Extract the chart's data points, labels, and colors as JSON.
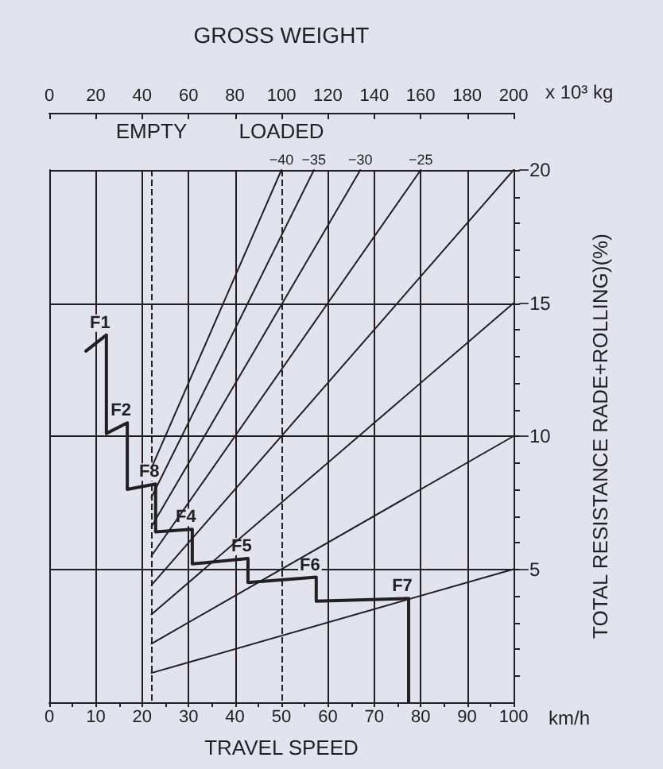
{
  "chart_data": {
    "type": "line",
    "x2label": "GROSS WEIGHT",
    "xlabel": "TRAVEL SPEED",
    "ylabel": "TOTAL RESISTANCE RADE+ROLLING)(%)",
    "xlim": [
      0,
      100
    ],
    "xticks": [
      0,
      {
        "value": 5,
        "label": null
      },
      10,
      {
        "value": 15,
        "label": null
      },
      20,
      {
        "value": 25,
        "label": null
      },
      30,
      {
        "value": 35,
        "label": null
      },
      40,
      {
        "value": 45,
        "label": null
      },
      50,
      {
        "value": 55,
        "label": null
      },
      60,
      {
        "value": 65,
        "label": null
      },
      70,
      {
        "value": 75,
        "label": null
      },
      80,
      {
        "value": 85,
        "label": null
      },
      90,
      {
        "value": 95,
        "label": null
      },
      100
    ],
    "x2lim": [
      0,
      200
    ],
    "x2ticks": [
      0,
      20,
      40,
      60,
      80,
      100,
      120,
      140,
      160,
      180,
      200
    ],
    "ylim": [
      0,
      -20
    ],
    "yticks": [
      {
        "value": -1,
        "label": null
      },
      {
        "value": -2,
        "label": null
      },
      {
        "value": -3,
        "label": null
      },
      {
        "value": -4,
        "label": null
      },
      -5,
      {
        "value": -6,
        "label": null
      },
      {
        "value": -7,
        "label": null
      },
      {
        "value": -8,
        "label": null
      },
      {
        "value": -9,
        "label": null
      },
      -10,
      {
        "value": -11,
        "label": null
      },
      {
        "value": -12,
        "label": null
      },
      {
        "value": -13,
        "label": null
      },
      {
        "value": -14,
        "label": null
      },
      -15,
      {
        "value": -16,
        "label": null
      },
      {
        "value": -17,
        "label": null
      },
      {
        "value": -18,
        "label": null
      },
      {
        "value": -19,
        "label": null
      },
      -20
    ],
    "grid": true,
    "marker": "none",
    "line_style": "solid",
    "series": [
      {
        "color": "#231f20",
        "x": [
          7.9,
          12.3,
          12.3,
          16.8,
          16.8,
          22.9,
          22.9,
          30.8,
          30.8,
          42.8,
          42.8,
          57.5,
          57.5,
          77.4,
          77.4
        ],
        "values": [
          -13.2,
          -13.8,
          -10.1,
          -10.5,
          -8.0,
          -8.2,
          -6.4,
          -6.5,
          -5.2,
          -5.4,
          -4.5,
          -4.7,
          -3.8,
          -3.9,
          0
        ]
      },
      {
        "color": "#231f20",
        "x": [
          22,
          100
        ],
        "values": [
          -1.1,
          -5
        ]
      },
      {
        "color": "#231f20",
        "x": [
          22,
          100
        ],
        "values": [
          -2.2,
          -10
        ]
      },
      {
        "color": "#231f20",
        "x": [
          22,
          100
        ],
        "values": [
          -3.3,
          -15
        ]
      },
      {
        "color": "#231f20",
        "x": [
          22,
          100
        ],
        "values": [
          -4.4,
          -20
        ]
      },
      {
        "name": "−25",
        "color": "#231f20",
        "x": [
          22,
          80
        ],
        "values": [
          -5.5,
          -20
        ]
      },
      {
        "name": "−30",
        "color": "#231f20",
        "x": [
          22,
          67
        ],
        "values": [
          -6.6,
          -20
        ]
      },
      {
        "name": "−35",
        "color": "#231f20",
        "x": [
          22,
          57
        ],
        "values": [
          -7.7,
          -20
        ]
      },
      {
        "name": "−40",
        "color": "#231f20",
        "x": [
          22,
          50
        ],
        "values": [
          -8.8,
          -20
        ]
      }
    ],
    "ref_lines": [
      {
        "axis": "x",
        "value": 22,
        "label": "EMPTY",
        "line_style": "dashed",
        "color": "#231f20"
      },
      {
        "axis": "x",
        "value": 50,
        "label": "LOADED",
        "line_style": "dashed",
        "color": "#231f20"
      }
    ],
    "annotations": [
      "km/h",
      "x 10³ kg",
      {
        "text": "F1",
        "x": 12.3,
        "y": -13.8
      },
      {
        "text": "F2",
        "x": 16.8,
        "y": -10.5
      },
      {
        "text": "F8",
        "x": 22.9,
        "y": -8.2
      },
      {
        "text": "F4",
        "x": 30.8,
        "y": -6.5
      },
      {
        "text": "F5",
        "x": 42.8,
        "y": -5.4
      },
      {
        "text": "F6",
        "x": 57.5,
        "y": -4.7
      },
      {
        "text": "F7",
        "x": 77.4,
        "y": -3.9
      }
    ]
  }
}
